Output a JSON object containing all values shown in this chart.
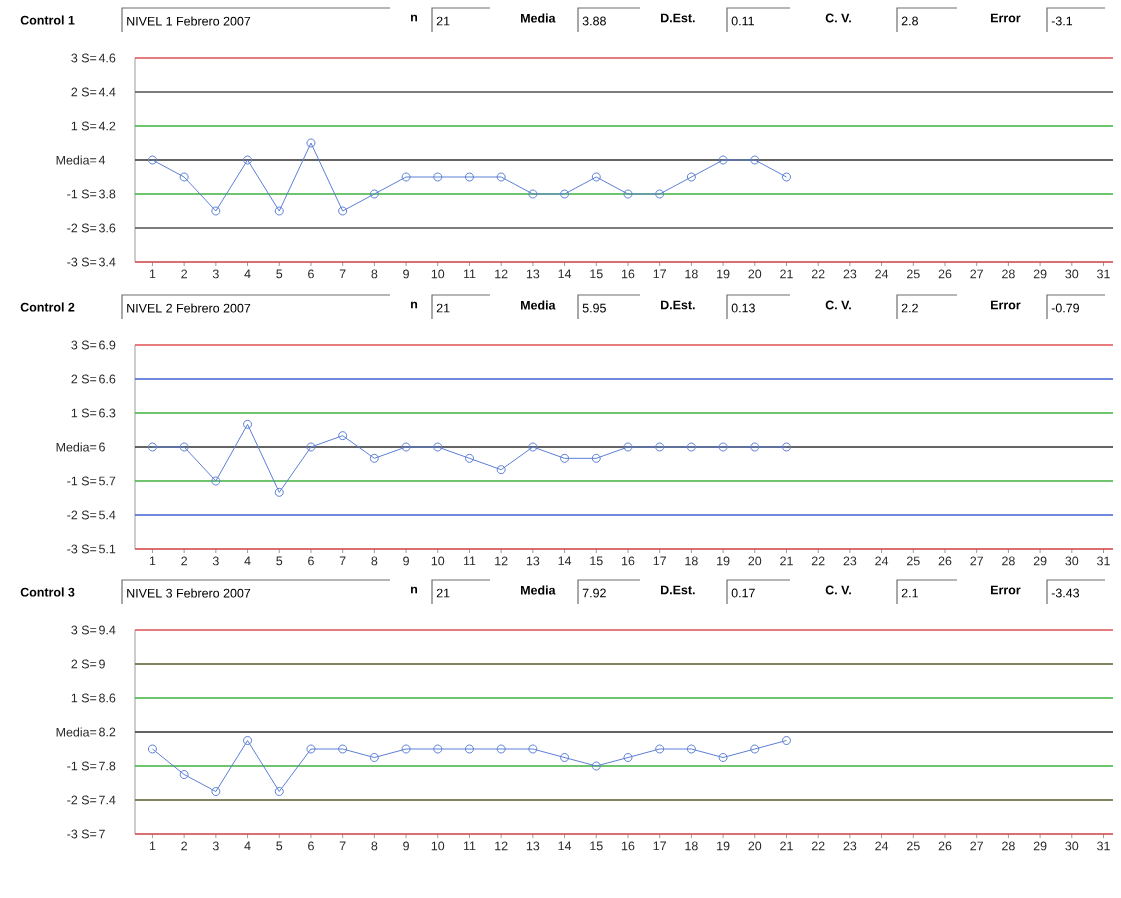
{
  "chart_data": [
    {
      "type": "line",
      "title": "Control 1",
      "subtitle": "NIVEL 1 Febrero 2007",
      "annotations": [
        "n",
        "21",
        "Media",
        "3.88",
        "D.Est.",
        "0.11",
        "C. V.",
        "2.8",
        "Error",
        "-3.1",
        "3 S=",
        "2 S=",
        "1 S=",
        "Media=",
        "-1 S=",
        "-2 S=",
        "-3 S="
      ],
      "categories": [
        "1",
        "2",
        "3",
        "4",
        "5",
        "6",
        "7",
        "8",
        "9",
        "10",
        "11",
        "12",
        "13",
        "14",
        "15",
        "16",
        "17",
        "18",
        "19",
        "20",
        "21",
        "22",
        "23",
        "24",
        "25",
        "26",
        "27",
        "28",
        "29",
        "30",
        "31"
      ],
      "values": [
        4.0,
        3.9,
        3.7,
        4.0,
        3.7,
        4.1,
        3.7,
        3.8,
        3.9,
        3.9,
        3.9,
        3.9,
        3.8,
        3.8,
        3.9,
        3.8,
        3.8,
        3.9,
        4.0,
        4.0,
        3.9,
        null,
        null,
        null,
        null,
        null,
        null,
        null,
        null,
        null,
        null
      ],
      "color": "#5b7fd6",
      "marker": "circle",
      "ylim": [
        3.4,
        4.6
      ],
      "yticks": [
        3.4,
        3.6,
        3.8,
        4,
        4.2,
        4.4,
        4.6
      ],
      "ref_lines": [
        {
          "axis": "y",
          "value": 4.6,
          "color": "#e05050"
        },
        {
          "axis": "y",
          "value": 4.4,
          "color": "#505050"
        },
        {
          "axis": "y",
          "value": 4.2,
          "color": "#40b040"
        },
        {
          "axis": "y",
          "value": 4.0,
          "color": "#303030"
        },
        {
          "axis": "y",
          "value": 3.8,
          "color": "#40b040"
        },
        {
          "axis": "y",
          "value": 3.6,
          "color": "#505050"
        },
        {
          "axis": "y",
          "value": 3.4,
          "color": "#e05050"
        }
      ]
    },
    {
      "type": "line",
      "title": "Control 2",
      "subtitle": "NIVEL 2 Febrero 2007",
      "annotations": [
        "n",
        "21",
        "Media",
        "5.95",
        "D.Est.",
        "0.13",
        "C. V.",
        "2.2",
        "Error",
        "-0.79",
        "3 S=",
        "2 S=",
        "1 S=",
        "Media=",
        "-1 S=",
        "-2 S=",
        "-3 S="
      ],
      "categories": [
        "1",
        "2",
        "3",
        "4",
        "5",
        "6",
        "7",
        "8",
        "9",
        "10",
        "11",
        "12",
        "13",
        "14",
        "15",
        "16",
        "17",
        "18",
        "19",
        "20",
        "21",
        "22",
        "23",
        "24",
        "25",
        "26",
        "27",
        "28",
        "29",
        "30",
        "31"
      ],
      "values": [
        6.0,
        6.0,
        5.7,
        6.2,
        5.6,
        6.0,
        6.1,
        5.9,
        6.0,
        6.0,
        5.9,
        5.8,
        6.0,
        5.9,
        5.9,
        6.0,
        6.0,
        6.0,
        6.0,
        6.0,
        6.0,
        null,
        null,
        null,
        null,
        null,
        null,
        null,
        null,
        null,
        null
      ],
      "color": "#5b7fd6",
      "marker": "circle",
      "ylim": [
        5.1,
        6.9
      ],
      "yticks": [
        5.1,
        5.4,
        5.7,
        6,
        6.3,
        6.6,
        6.9
      ],
      "ref_lines": [
        {
          "axis": "y",
          "value": 6.9,
          "color": "#e05050"
        },
        {
          "axis": "y",
          "value": 6.6,
          "color": "#4060d0"
        },
        {
          "axis": "y",
          "value": 6.3,
          "color": "#40b040"
        },
        {
          "axis": "y",
          "value": 6.0,
          "color": "#303030"
        },
        {
          "axis": "y",
          "value": 5.7,
          "color": "#40b040"
        },
        {
          "axis": "y",
          "value": 5.4,
          "color": "#4060d0"
        },
        {
          "axis": "y",
          "value": 5.1,
          "color": "#e05050"
        }
      ]
    },
    {
      "type": "line",
      "title": "Control 3",
      "subtitle": "NIVEL 3 Febrero 2007",
      "annotations": [
        "n",
        "21",
        "Media",
        "7.92",
        "D.Est.",
        "0.17",
        "C. V.",
        "2.1",
        "Error",
        "-3.43",
        "3 S=",
        "2 S=",
        "1 S=",
        "Media=",
        "-1 S=",
        "-2 S=",
        "-3 S="
      ],
      "categories": [
        "1",
        "2",
        "3",
        "4",
        "5",
        "6",
        "7",
        "8",
        "9",
        "10",
        "11",
        "12",
        "13",
        "14",
        "15",
        "16",
        "17",
        "18",
        "19",
        "20",
        "21",
        "22",
        "23",
        "24",
        "25",
        "26",
        "27",
        "28",
        "29",
        "30",
        "31"
      ],
      "values": [
        8.0,
        7.7,
        7.5,
        8.1,
        7.5,
        8.0,
        8.0,
        7.9,
        8.0,
        8.0,
        8.0,
        8.0,
        8.0,
        7.9,
        7.8,
        7.9,
        8.0,
        8.0,
        7.9,
        8.0,
        8.1,
        null,
        null,
        null,
        null,
        null,
        null,
        null,
        null,
        null,
        null
      ],
      "color": "#5b7fd6",
      "marker": "circle",
      "ylim": [
        7,
        9.4
      ],
      "yticks": [
        7,
        7.4,
        7.8,
        8.2,
        8.6,
        9,
        9.4
      ],
      "ref_lines": [
        {
          "axis": "y",
          "value": 9.4,
          "color": "#e05050"
        },
        {
          "axis": "y",
          "value": 9.0,
          "color": "#5a5a2a"
        },
        {
          "axis": "y",
          "value": 8.6,
          "color": "#40b040"
        },
        {
          "axis": "y",
          "value": 8.2,
          "color": "#303030"
        },
        {
          "axis": "y",
          "value": 7.8,
          "color": "#40b040"
        },
        {
          "axis": "y",
          "value": 7.4,
          "color": "#5a5a2a"
        },
        {
          "axis": "y",
          "value": 7.0,
          "color": "#e05050"
        }
      ]
    }
  ]
}
